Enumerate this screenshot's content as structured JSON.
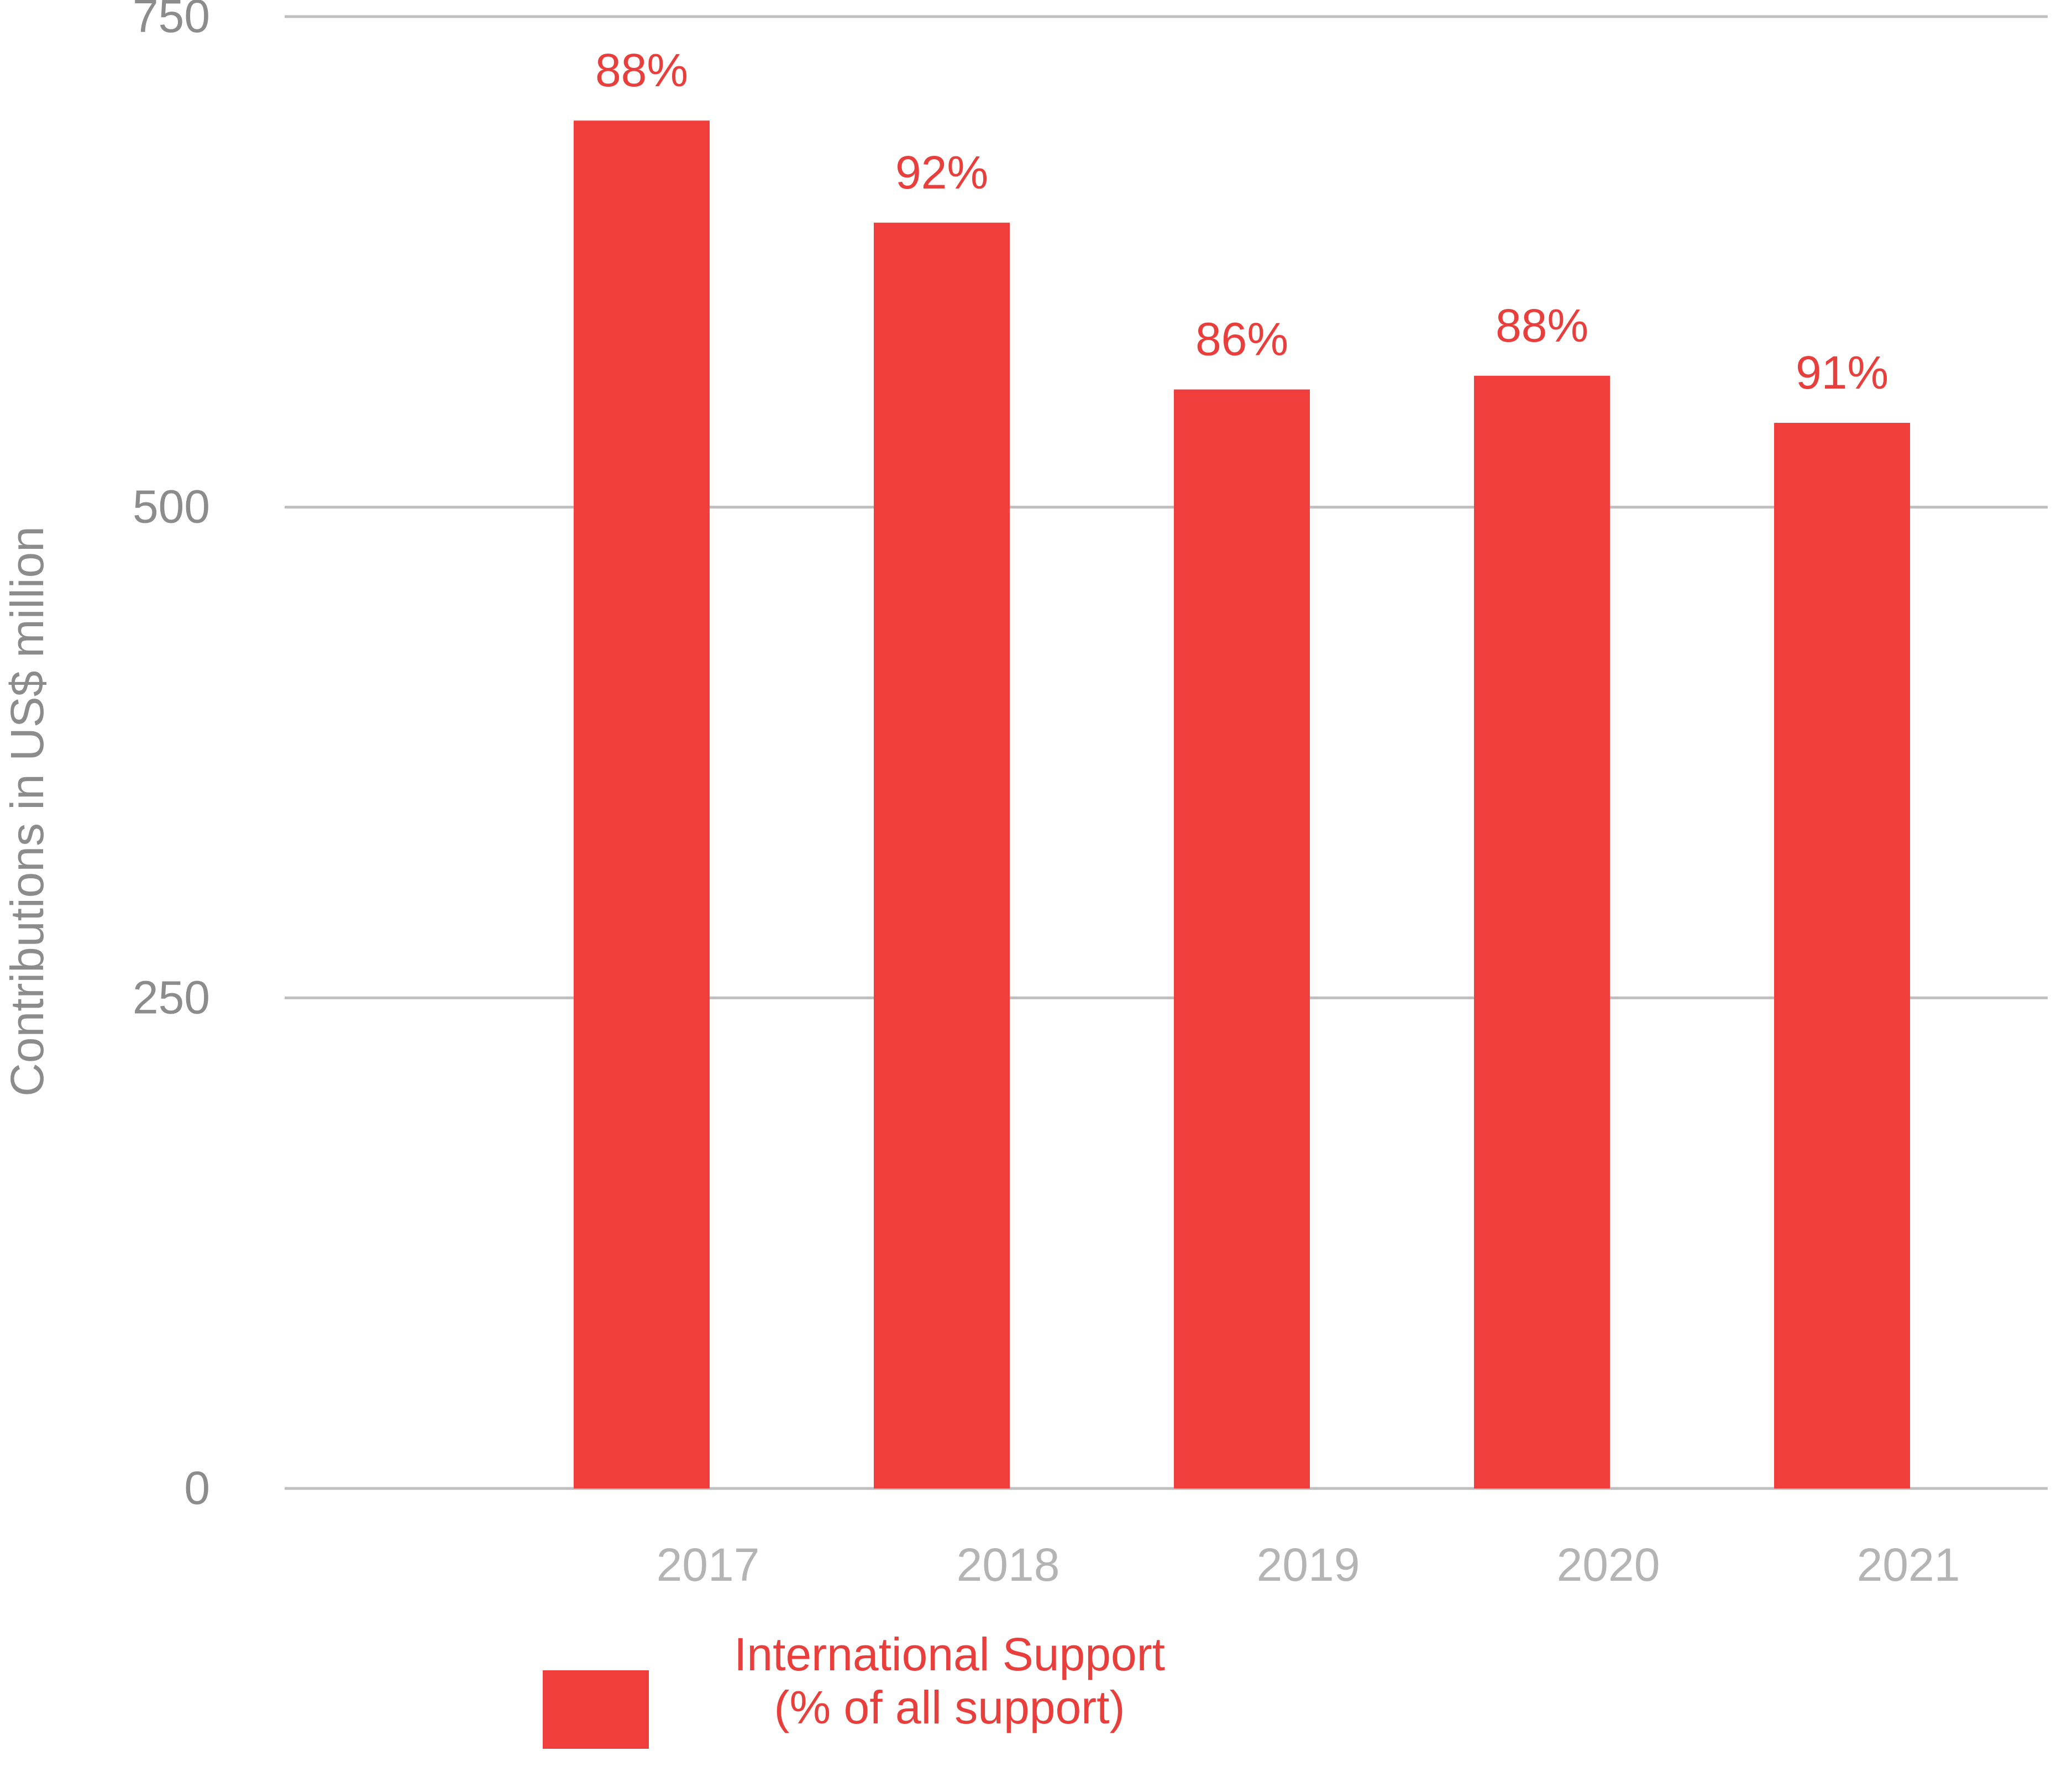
{
  "chart_data": {
    "type": "bar",
    "title": "",
    "xlabel": "",
    "ylabel": "Contributions in US$ million",
    "ylim": [
      0,
      750
    ],
    "yticks": [
      "0",
      "250",
      "500",
      "750"
    ],
    "categories": [
      "2017",
      "2018",
      "2019",
      "2020",
      "2021"
    ],
    "series": [
      {
        "name": "International Support (% of all support)",
        "legend_lines": [
          "International Support",
          "(% of all support)"
        ],
        "values": [
          697,
          645,
          560,
          567,
          543
        ],
        "labels": [
          "88%",
          "92%",
          "86%",
          "88%",
          "91%"
        ],
        "color": "#ef3e3c"
      }
    ],
    "grid": true,
    "legend_position": "bottom"
  },
  "colors": {
    "bar": "#ef3e3c",
    "label": "#e83e3c",
    "grid": "#bfbfbf",
    "axis_text": "#8c8c8c",
    "xtick_text": "#b4b4b4"
  }
}
